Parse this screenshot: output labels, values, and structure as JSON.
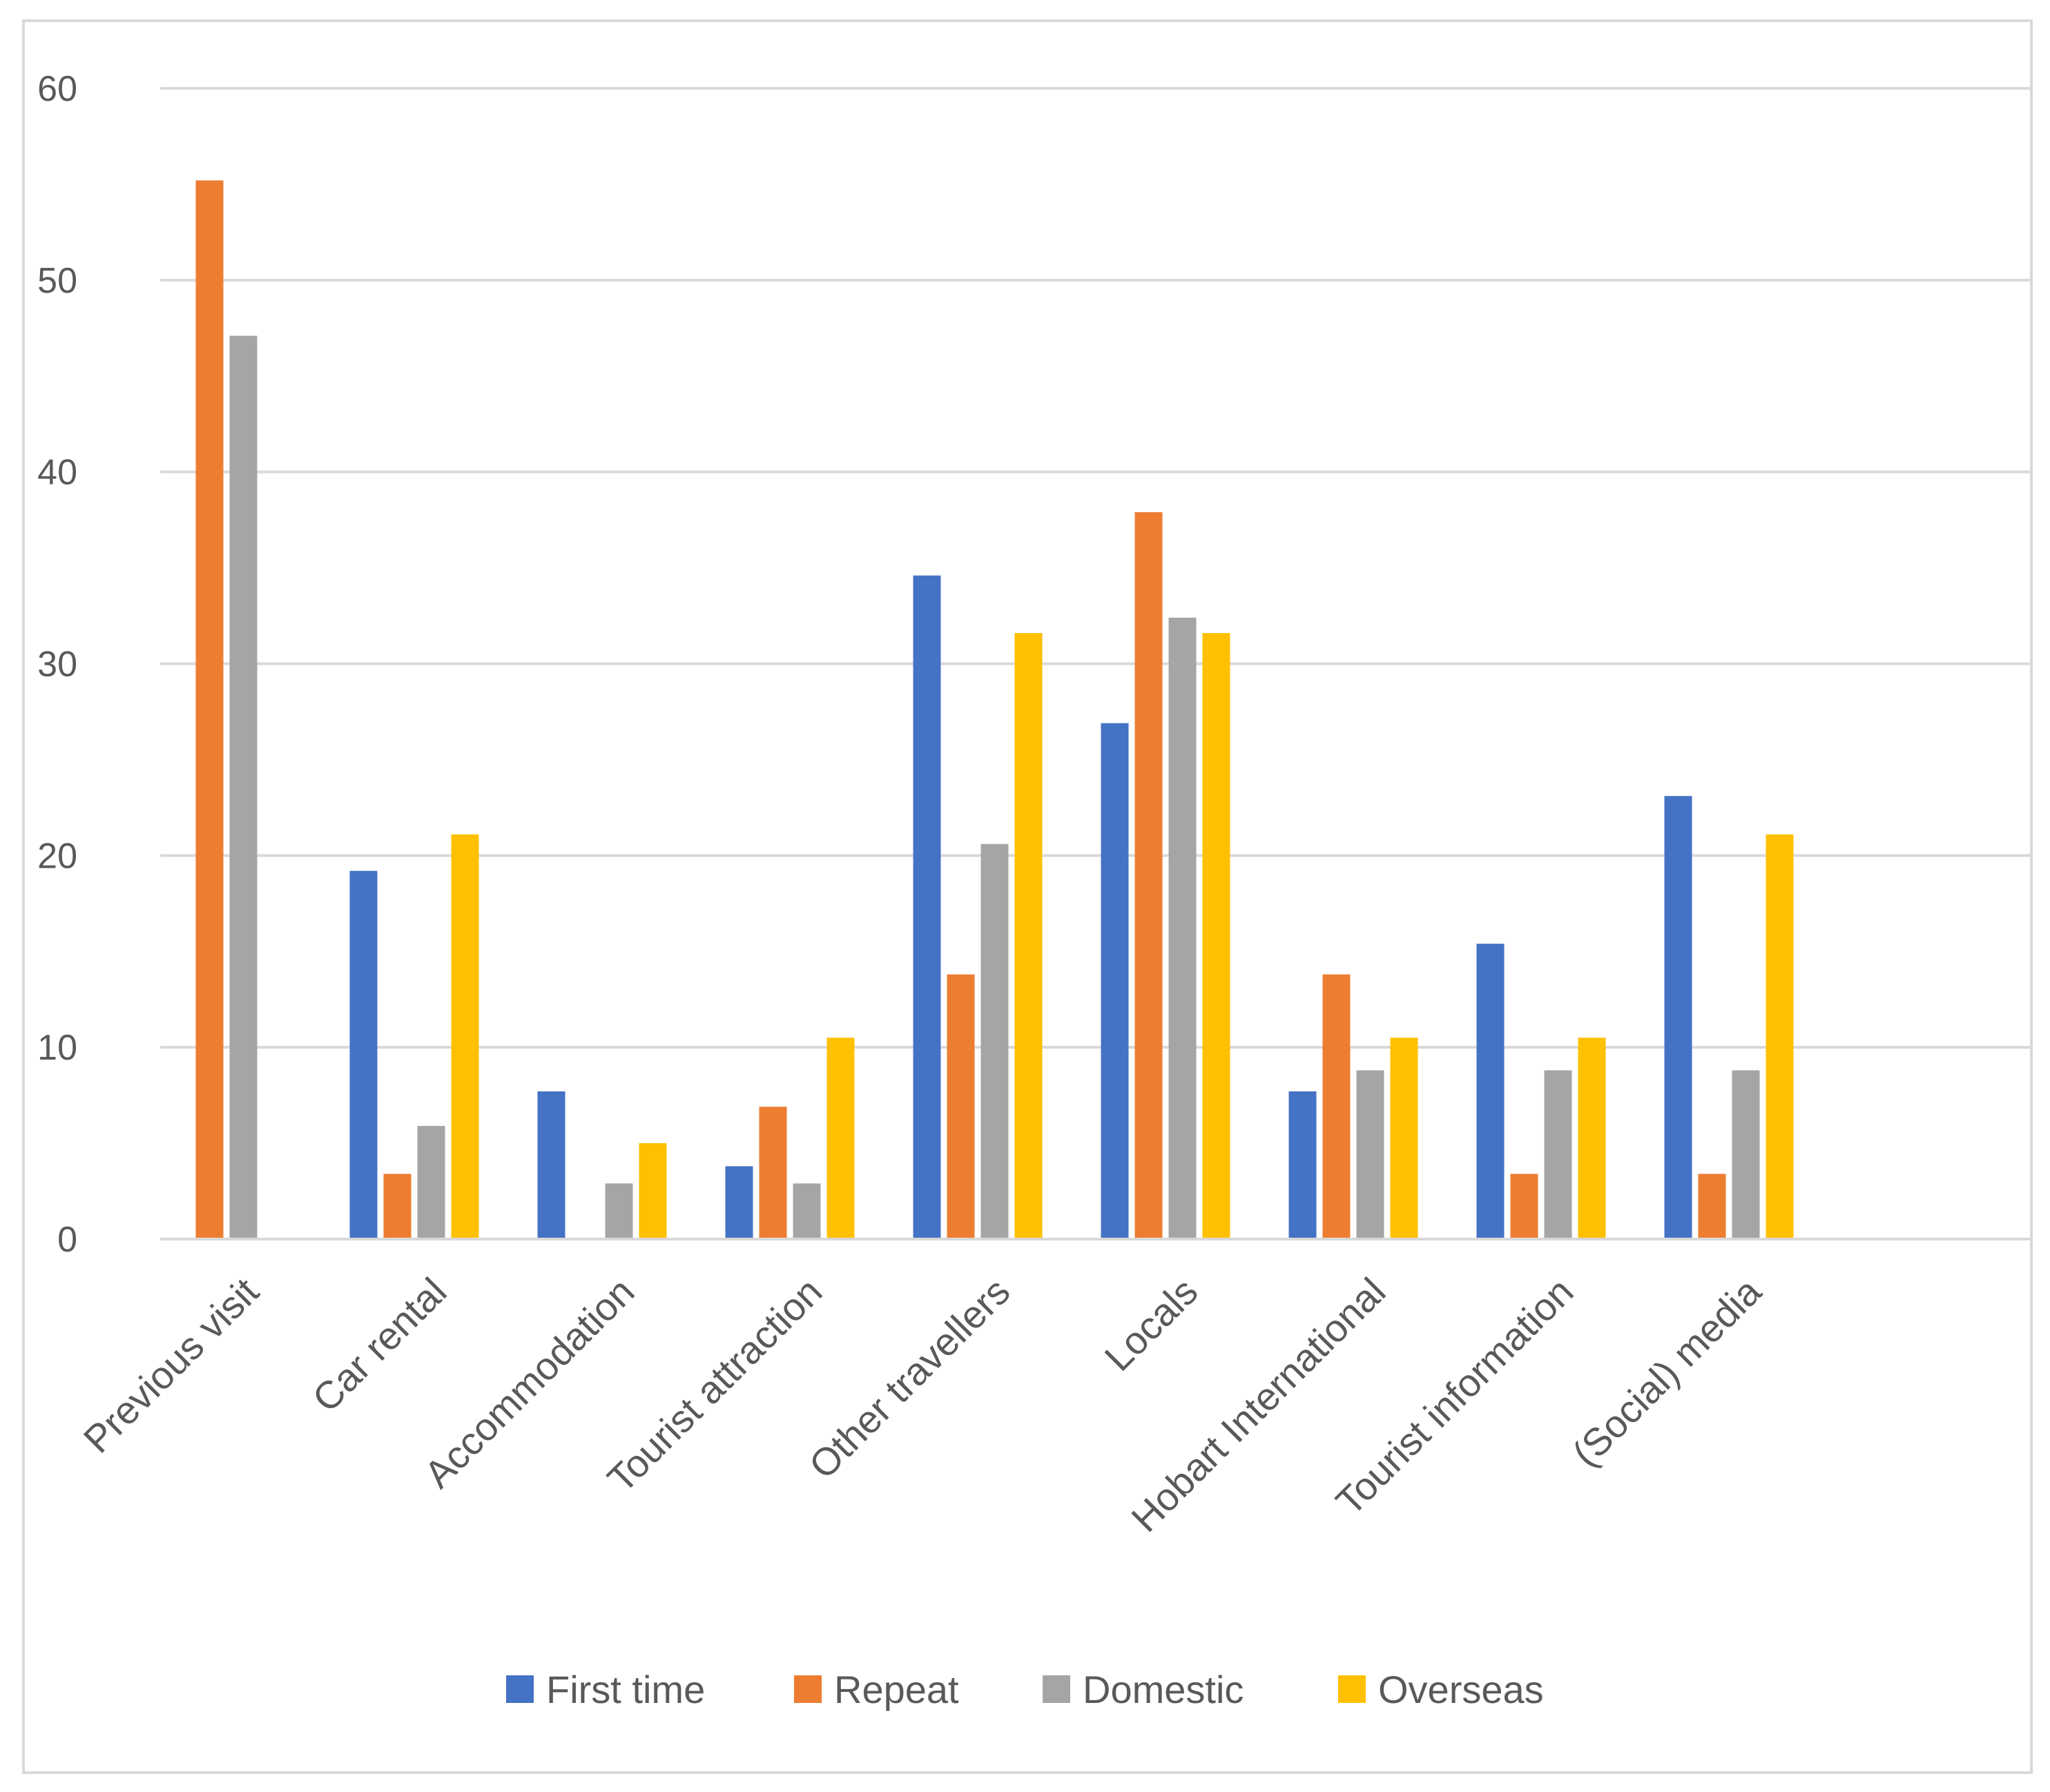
{
  "chart_data": {
    "type": "bar",
    "title": "",
    "xlabel": "",
    "ylabel": "",
    "ylim": [
      0,
      60
    ],
    "yticks": [
      0,
      10,
      20,
      30,
      40,
      50,
      60
    ],
    "grid": true,
    "legend_position": "bottom",
    "categories": [
      "Previous visit",
      "Car rental",
      "Accommodation",
      "Tourist attraction",
      "Other travellers",
      "Locals",
      "Hobart International",
      "Tourist information",
      "(Social) media"
    ],
    "series": [
      {
        "name": "First time",
        "color": "#4472C4",
        "values": [
          0,
          19.2,
          7.7,
          3.8,
          34.6,
          26.9,
          7.7,
          15.4,
          23.1
        ]
      },
      {
        "name": "Repeat",
        "color": "#ED7D31",
        "values": [
          55.2,
          3.4,
          0,
          6.9,
          13.8,
          37.9,
          13.8,
          3.4,
          3.4
        ]
      },
      {
        "name": "Domestic",
        "color": "#A5A5A5",
        "values": [
          47.1,
          5.9,
          2.9,
          2.9,
          20.6,
          32.4,
          8.8,
          8.8,
          8.8
        ]
      },
      {
        "name": "Overseas",
        "color": "#FFC000",
        "values": [
          0,
          21.1,
          5.0,
          10.5,
          31.6,
          31.6,
          10.5,
          10.5,
          21.1
        ]
      }
    ]
  }
}
